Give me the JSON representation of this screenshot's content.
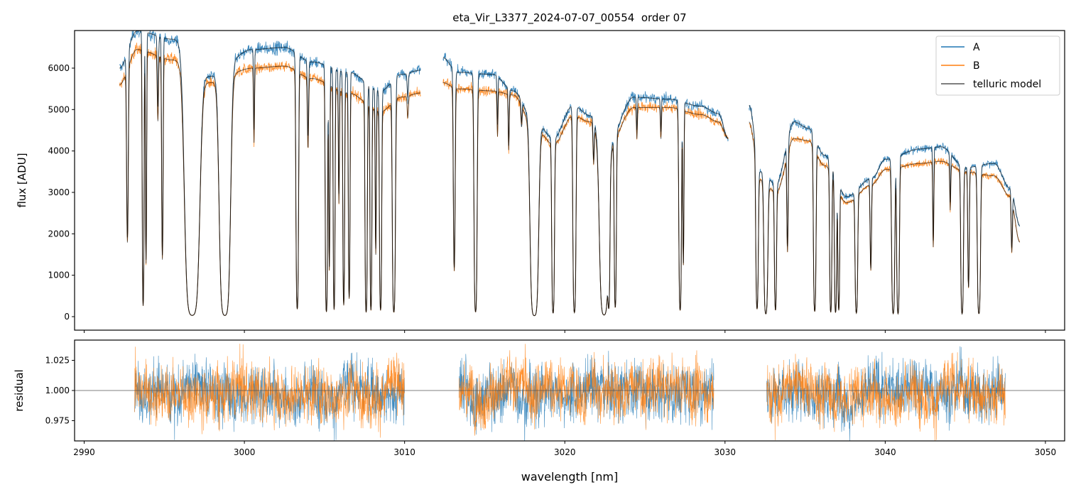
{
  "chart_data": [
    {
      "type": "line",
      "panel": "spectrum",
      "title": "eta_Vir_L3377_2024-07-07_00554  order 07",
      "xlabel": "",
      "ylabel": "flux [ADU]",
      "xlim": [
        2989.4,
        3051.2
      ],
      "ylim": [
        -326,
        6908
      ],
      "x_ticks": [
        2990,
        3000,
        3010,
        3020,
        3030,
        3040,
        3050
      ],
      "y_ticks": [
        0,
        1000,
        2000,
        3000,
        4000,
        5000,
        6000
      ],
      "y_tick_labels": [
        "0",
        "1000",
        "2000",
        "3000",
        "4000",
        "5000",
        "6000"
      ],
      "legend": {
        "placement": "top-right",
        "entries": [
          "A",
          "B",
          "telluric model"
        ]
      },
      "series_colors": {
        "A": "#1f77b4",
        "B": "#ff7f0e",
        "telluric model": "#000000"
      },
      "segments": [
        [
          2992.2,
          3011.0
        ],
        [
          3012.4,
          3030.2
        ],
        [
          3031.5,
          3048.4
        ]
      ],
      "continuum_A": [
        [
          2992.2,
          6000
        ],
        [
          2993.3,
          6900
        ],
        [
          2995.5,
          6700
        ],
        [
          2997.8,
          5800
        ],
        [
          3000.5,
          6450
        ],
        [
          3002.5,
          6500
        ],
        [
          3004.2,
          6150
        ],
        [
          3006.5,
          5900
        ],
        [
          3008.5,
          5450
        ],
        [
          3009.8,
          5850
        ],
        [
          3011.0,
          5950
        ],
        [
          3012.4,
          6250
        ],
        [
          3013.3,
          5900
        ],
        [
          3015.5,
          5850
        ],
        [
          3016.8,
          5450
        ],
        [
          3018.0,
          4800
        ],
        [
          3019.3,
          4300
        ],
        [
          3020.5,
          5100
        ],
        [
          3021.6,
          4850
        ],
        [
          3022.5,
          4000
        ],
        [
          3024.3,
          5300
        ],
        [
          3026.5,
          5250
        ],
        [
          3028.5,
          5080
        ],
        [
          3029.6,
          4900
        ],
        [
          3030.2,
          4300
        ],
        [
          3031.5,
          5100
        ],
        [
          3032.2,
          3500
        ],
        [
          3033.2,
          3200
        ],
        [
          3034.3,
          4700
        ],
        [
          3035.2,
          4550
        ],
        [
          3036.2,
          3900
        ],
        [
          3037.6,
          2900
        ],
        [
          3039.2,
          3350
        ],
        [
          3040.0,
          3800
        ],
        [
          3042.2,
          4050
        ],
        [
          3043.5,
          4100
        ],
        [
          3045.0,
          3600
        ],
        [
          3046.8,
          3700
        ],
        [
          3047.8,
          3100
        ],
        [
          3048.4,
          2200
        ]
      ],
      "continuum_B": [
        [
          2992.2,
          5600
        ],
        [
          2993.3,
          6450
        ],
        [
          2995.5,
          6200
        ],
        [
          2997.8,
          5650
        ],
        [
          3000.5,
          6000
        ],
        [
          3002.5,
          6050
        ],
        [
          3004.2,
          5750
        ],
        [
          3006.5,
          5400
        ],
        [
          3008.5,
          4950
        ],
        [
          3009.8,
          5300
        ],
        [
          3011.0,
          5400
        ],
        [
          3012.4,
          5650
        ],
        [
          3013.3,
          5500
        ],
        [
          3015.5,
          5450
        ],
        [
          3016.8,
          5350
        ],
        [
          3018.0,
          4650
        ],
        [
          3019.3,
          4150
        ],
        [
          3020.5,
          4850
        ],
        [
          3021.6,
          4700
        ],
        [
          3022.5,
          3900
        ],
        [
          3024.3,
          5050
        ],
        [
          3026.5,
          5050
        ],
        [
          3028.5,
          4880
        ],
        [
          3029.6,
          4700
        ],
        [
          3030.2,
          4300
        ],
        [
          3031.5,
          4700
        ],
        [
          3032.2,
          3300
        ],
        [
          3033.2,
          3000
        ],
        [
          3034.3,
          4300
        ],
        [
          3035.2,
          4250
        ],
        [
          3036.2,
          3650
        ],
        [
          3037.6,
          2750
        ],
        [
          3039.2,
          3200
        ],
        [
          3040.0,
          3550
        ],
        [
          3042.2,
          3700
        ],
        [
          3043.5,
          3750
        ],
        [
          3045.0,
          3500
        ],
        [
          3046.8,
          3400
        ],
        [
          3047.8,
          2900
        ],
        [
          3048.4,
          1800
        ]
      ],
      "absorption_lines": [
        [
          2992.7,
          0.7,
          0.06
        ],
        [
          2993.68,
          0.96,
          0.05
        ],
        [
          2993.86,
          0.8,
          0.04
        ],
        [
          2994.6,
          0.25,
          0.05
        ],
        [
          2994.88,
          0.78,
          0.05
        ],
        [
          2996.74,
          0.995,
          0.35
        ],
        [
          2998.78,
          0.995,
          0.26
        ],
        [
          3000.6,
          0.3,
          0.04
        ],
        [
          3003.3,
          0.97,
          0.07
        ],
        [
          3003.97,
          0.3,
          0.05
        ],
        [
          3005.12,
          0.98,
          0.06
        ],
        [
          3005.3,
          0.8,
          0.04
        ],
        [
          3005.6,
          0.97,
          0.05
        ],
        [
          3005.9,
          0.5,
          0.04
        ],
        [
          3006.2,
          0.95,
          0.05
        ],
        [
          3006.54,
          0.92,
          0.05
        ],
        [
          3007.6,
          0.98,
          0.06
        ],
        [
          3007.9,
          0.97,
          0.05
        ],
        [
          3008.2,
          0.7,
          0.04
        ],
        [
          3008.5,
          0.97,
          0.06
        ],
        [
          3009.33,
          0.98,
          0.08
        ],
        [
          3010.2,
          0.1,
          0.05
        ],
        [
          3013.1,
          0.8,
          0.06
        ],
        [
          3014.43,
          0.98,
          0.08
        ],
        [
          3015.8,
          0.2,
          0.04
        ],
        [
          3016.5,
          0.25,
          0.04
        ],
        [
          3017.3,
          0.1,
          0.05
        ],
        [
          3018.1,
          0.995,
          0.2
        ],
        [
          3019.27,
          0.98,
          0.07
        ],
        [
          3020.6,
          0.98,
          0.08
        ],
        [
          3021.8,
          0.2,
          0.05
        ],
        [
          3022.45,
          0.99,
          0.22
        ],
        [
          3022.75,
          0.9,
          0.06
        ],
        [
          3023.15,
          0.95,
          0.06
        ],
        [
          3024.5,
          0.15,
          0.04
        ],
        [
          3026.0,
          0.15,
          0.04
        ],
        [
          3027.2,
          0.97,
          0.07
        ],
        [
          3027.4,
          0.75,
          0.04
        ],
        [
          3032.0,
          0.95,
          0.07
        ],
        [
          3032.55,
          0.98,
          0.1
        ],
        [
          3033.15,
          0.95,
          0.06
        ],
        [
          3033.9,
          0.6,
          0.05
        ],
        [
          3035.6,
          0.97,
          0.07
        ],
        [
          3036.6,
          0.97,
          0.06
        ],
        [
          3036.9,
          0.97,
          0.06
        ],
        [
          3037.1,
          0.95,
          0.05
        ],
        [
          3038.2,
          0.97,
          0.07
        ],
        [
          3039.1,
          0.65,
          0.05
        ],
        [
          3040.5,
          0.98,
          0.08
        ],
        [
          3040.8,
          0.98,
          0.07
        ],
        [
          3043.0,
          0.55,
          0.04
        ],
        [
          3044.06,
          0.3,
          0.04
        ],
        [
          3044.8,
          0.98,
          0.07
        ],
        [
          3045.2,
          0.8,
          0.05
        ],
        [
          3045.85,
          0.98,
          0.08
        ],
        [
          3047.9,
          0.45,
          0.05
        ]
      ],
      "noise_fraction": 0.012
    },
    {
      "type": "line",
      "panel": "residual",
      "xlabel": "wavelength [nm]",
      "ylabel": "residual",
      "xlim": [
        2989.4,
        3051.2
      ],
      "ylim": [
        0.9582,
        1.0418
      ],
      "x_ticks": [
        2990,
        3000,
        3010,
        3020,
        3030,
        3040,
        3050
      ],
      "x_tick_labels": [
        "2990",
        "3000",
        "3010",
        "3020",
        "3030",
        "3040",
        "3050"
      ],
      "y_ticks": [
        0.975,
        1.0,
        1.025
      ],
      "y_tick_labels": [
        "0.975",
        "1.000",
        "1.025"
      ],
      "reference_line": 1.0,
      "segments": [
        [
          2993.15,
          3010.0
        ],
        [
          3013.4,
          3029.3
        ],
        [
          3032.6,
          3047.5
        ]
      ],
      "residual_std": 0.012
    }
  ]
}
